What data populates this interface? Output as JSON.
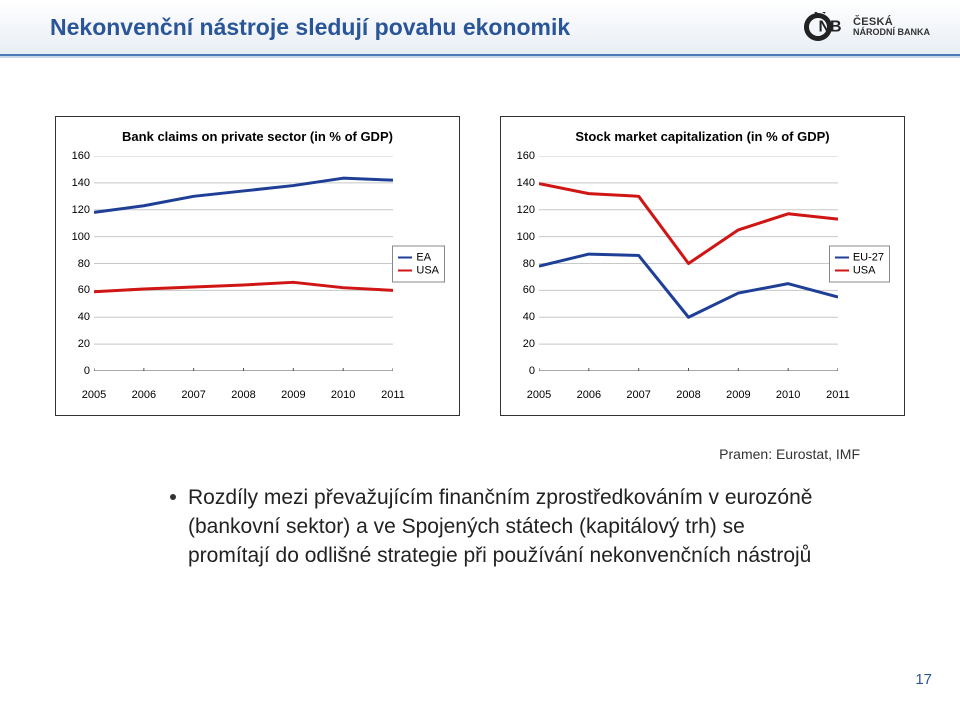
{
  "header": {
    "title": "Nekonvenční nástroje sledují povahu ekonomik",
    "logo_text_top": "ČESKÁ",
    "logo_text_bottom": "NÁRODNÍ BANKA"
  },
  "chart_left": {
    "type": "line",
    "title": "Bank claims on private sector (in % of GDP)",
    "title_fontsize": 13,
    "x_years": [
      2005,
      2006,
      2007,
      2008,
      2009,
      2010,
      2011
    ],
    "series": [
      {
        "name": "EA",
        "color": "#1f3f97",
        "width": 3,
        "values": [
          118,
          123,
          130,
          134,
          138,
          143.5,
          142
        ]
      },
      {
        "name": "USA",
        "color": "#d01515",
        "width": 3,
        "values": [
          59,
          61,
          62.5,
          64,
          66,
          62,
          60
        ]
      }
    ],
    "ymin": 0,
    "ymax": 160,
    "ytick_step": 20,
    "grid_color": "#c8c8c8",
    "axis_color": "#555555",
    "background_color": "#ffffff",
    "label_fontsize": 11,
    "legend_border": "#888888"
  },
  "chart_right": {
    "type": "line",
    "title": "Stock market capitalization (in % of GDP)",
    "title_fontsize": 13,
    "x_years": [
      2005,
      2006,
      2007,
      2008,
      2009,
      2010,
      2011
    ],
    "series": [
      {
        "name": "EU-27",
        "color": "#1f3f97",
        "width": 3,
        "values": [
          78,
          87,
          86,
          40,
          58,
          65,
          55
        ]
      },
      {
        "name": "USA",
        "color": "#d01515",
        "width": 3,
        "values": [
          139.5,
          132,
          130,
          80,
          105,
          117,
          113
        ]
      }
    ],
    "ymin": 0,
    "ymax": 160,
    "ytick_step": 20,
    "grid_color": "#c8c8c8",
    "axis_color": "#555555",
    "background_color": "#ffffff",
    "label_fontsize": 11,
    "legend_border": "#888888"
  },
  "source_line": "Pramen: Eurostat, IMF",
  "bullet_text": "Rozdíly mezi převažujícím finančním zprostředkováním v eurozóně (bankovní sektor) a ve Spojených státech (kapitálový trh) se promítají do odlišné strategie při používání nekonvenčních nástrojů",
  "page_number": "17",
  "colors": {
    "title_color": "#2a5599",
    "header_border": "#4a7ab8",
    "text_color": "#222222"
  }
}
